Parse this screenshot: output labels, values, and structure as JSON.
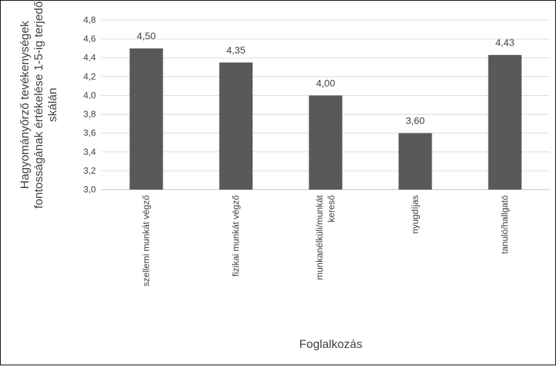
{
  "chart_data": {
    "type": "bar",
    "title": "",
    "xlabel": "Foglalkozás",
    "ylabel_lines": [
      "Hagyományőrző tevékenységek",
      "fontosságának értékelése 1-5-ig terjedő",
      "skálán"
    ],
    "ylim": [
      3.0,
      4.8
    ],
    "yticks": [
      3.0,
      3.2,
      3.4,
      3.6,
      3.8,
      4.0,
      4.2,
      4.4,
      4.6,
      4.8
    ],
    "ytick_labels": [
      "3,0",
      "3,2",
      "3,4",
      "3,6",
      "3,8",
      "4,0",
      "4,2",
      "4,4",
      "4,6",
      "4,8"
    ],
    "grid": true,
    "legend": "none",
    "bar_color": "#595959",
    "categories": [
      {
        "lines": [
          "szellemi munkát végző"
        ]
      },
      {
        "lines": [
          "fizikai munkát végző"
        ]
      },
      {
        "lines": [
          "munkanélküli/munkát",
          "kereső"
        ]
      },
      {
        "lines": [
          "nyugdíjas"
        ]
      },
      {
        "lines": [
          "tanuló/hallgató"
        ]
      }
    ],
    "values": [
      4.5,
      4.35,
      4.0,
      3.6,
      4.43
    ],
    "value_labels": [
      "4,50",
      "4,35",
      "4,00",
      "3,60",
      "4,43"
    ]
  }
}
